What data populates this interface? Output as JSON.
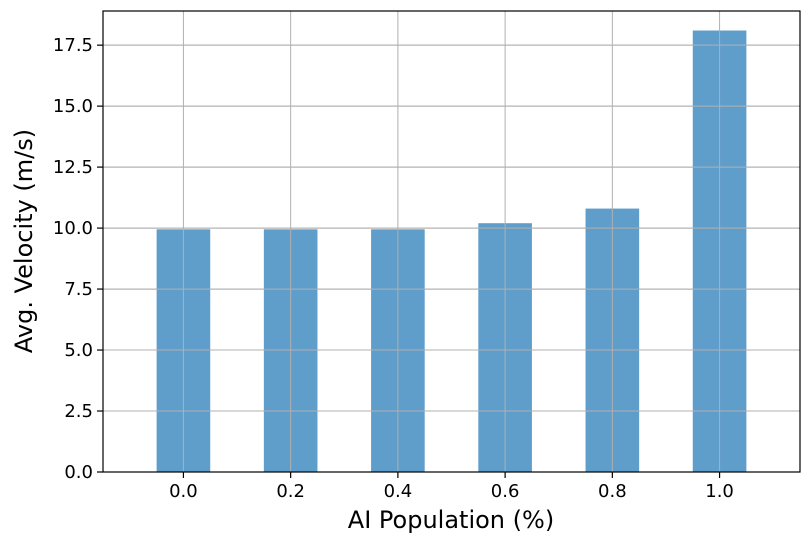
{
  "chart_data": {
    "type": "bar",
    "title": "",
    "xlabel": "AI Population (%)",
    "ylabel": "Avg. Velocity (m/s)",
    "categories": [
      "0.0",
      "0.2",
      "0.4",
      "0.6",
      "0.8",
      "1.0"
    ],
    "values": [
      9.95,
      9.95,
      9.95,
      10.2,
      10.8,
      18.1
    ],
    "ylim": [
      0,
      18.9
    ],
    "yticks": [
      "0.0",
      "2.5",
      "5.0",
      "7.5",
      "10.0",
      "12.5",
      "15.0",
      "17.5"
    ],
    "grid": true,
    "legend": "none",
    "bar_color": "#5f9ecb"
  }
}
